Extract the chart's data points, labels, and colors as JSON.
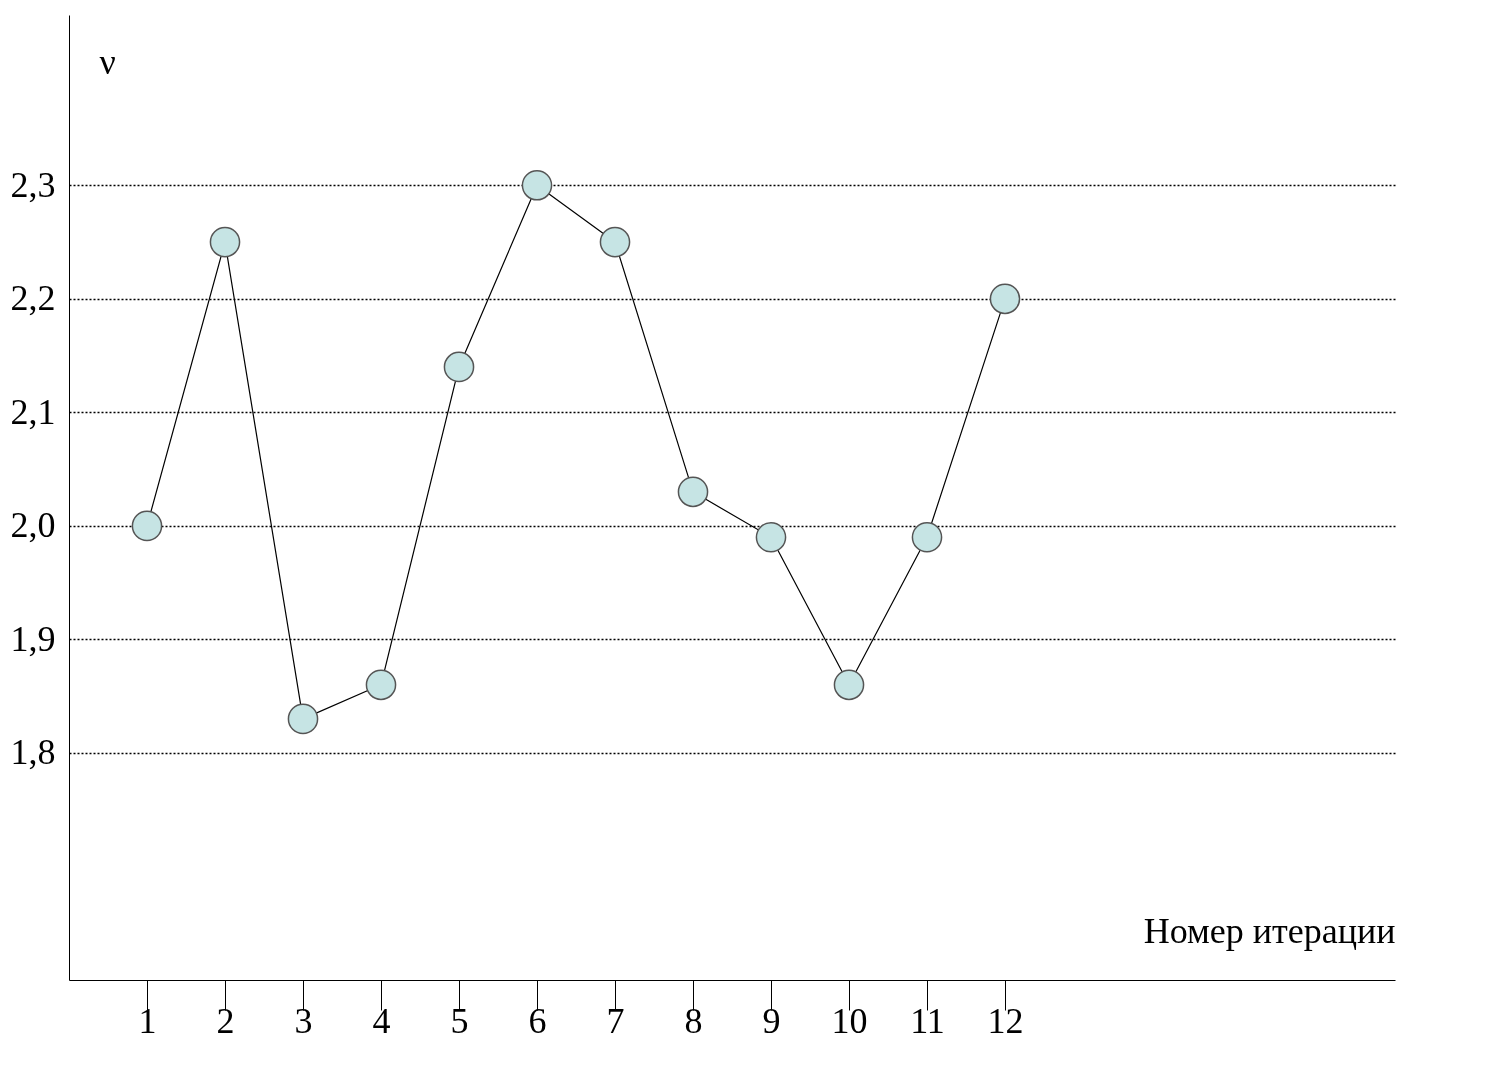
{
  "chart_data": {
    "type": "line",
    "xlabel": "Номер итерации",
    "ylabel": "ν",
    "x": [
      1,
      2,
      3,
      4,
      5,
      6,
      7,
      8,
      9,
      10,
      11,
      12
    ],
    "series": [
      {
        "color": "#c6e4e4",
        "values": [
          2.0,
          2.25,
          1.83,
          1.86,
          2.14,
          2.3,
          2.25,
          2.03,
          1.99,
          1.86,
          1.99,
          2.2
        ]
      }
    ],
    "xlim": [
      0,
      17
    ],
    "xticks": [
      1,
      2,
      3,
      4,
      5,
      6,
      7,
      8,
      9,
      10,
      11,
      12
    ],
    "ylim": [
      1.6,
      2.45
    ],
    "yticks": [
      {
        "value": 1.8,
        "label": "1,8"
      },
      {
        "value": 1.9,
        "label": "1,9"
      },
      {
        "value": 2.0,
        "label": "2,0"
      },
      {
        "value": 2.1,
        "label": "2,1"
      },
      {
        "value": 2.2,
        "label": "2,2"
      },
      {
        "value": 2.3,
        "label": "2,3"
      }
    ],
    "grid": "y",
    "marker": "circle",
    "line_style": "solid"
  }
}
